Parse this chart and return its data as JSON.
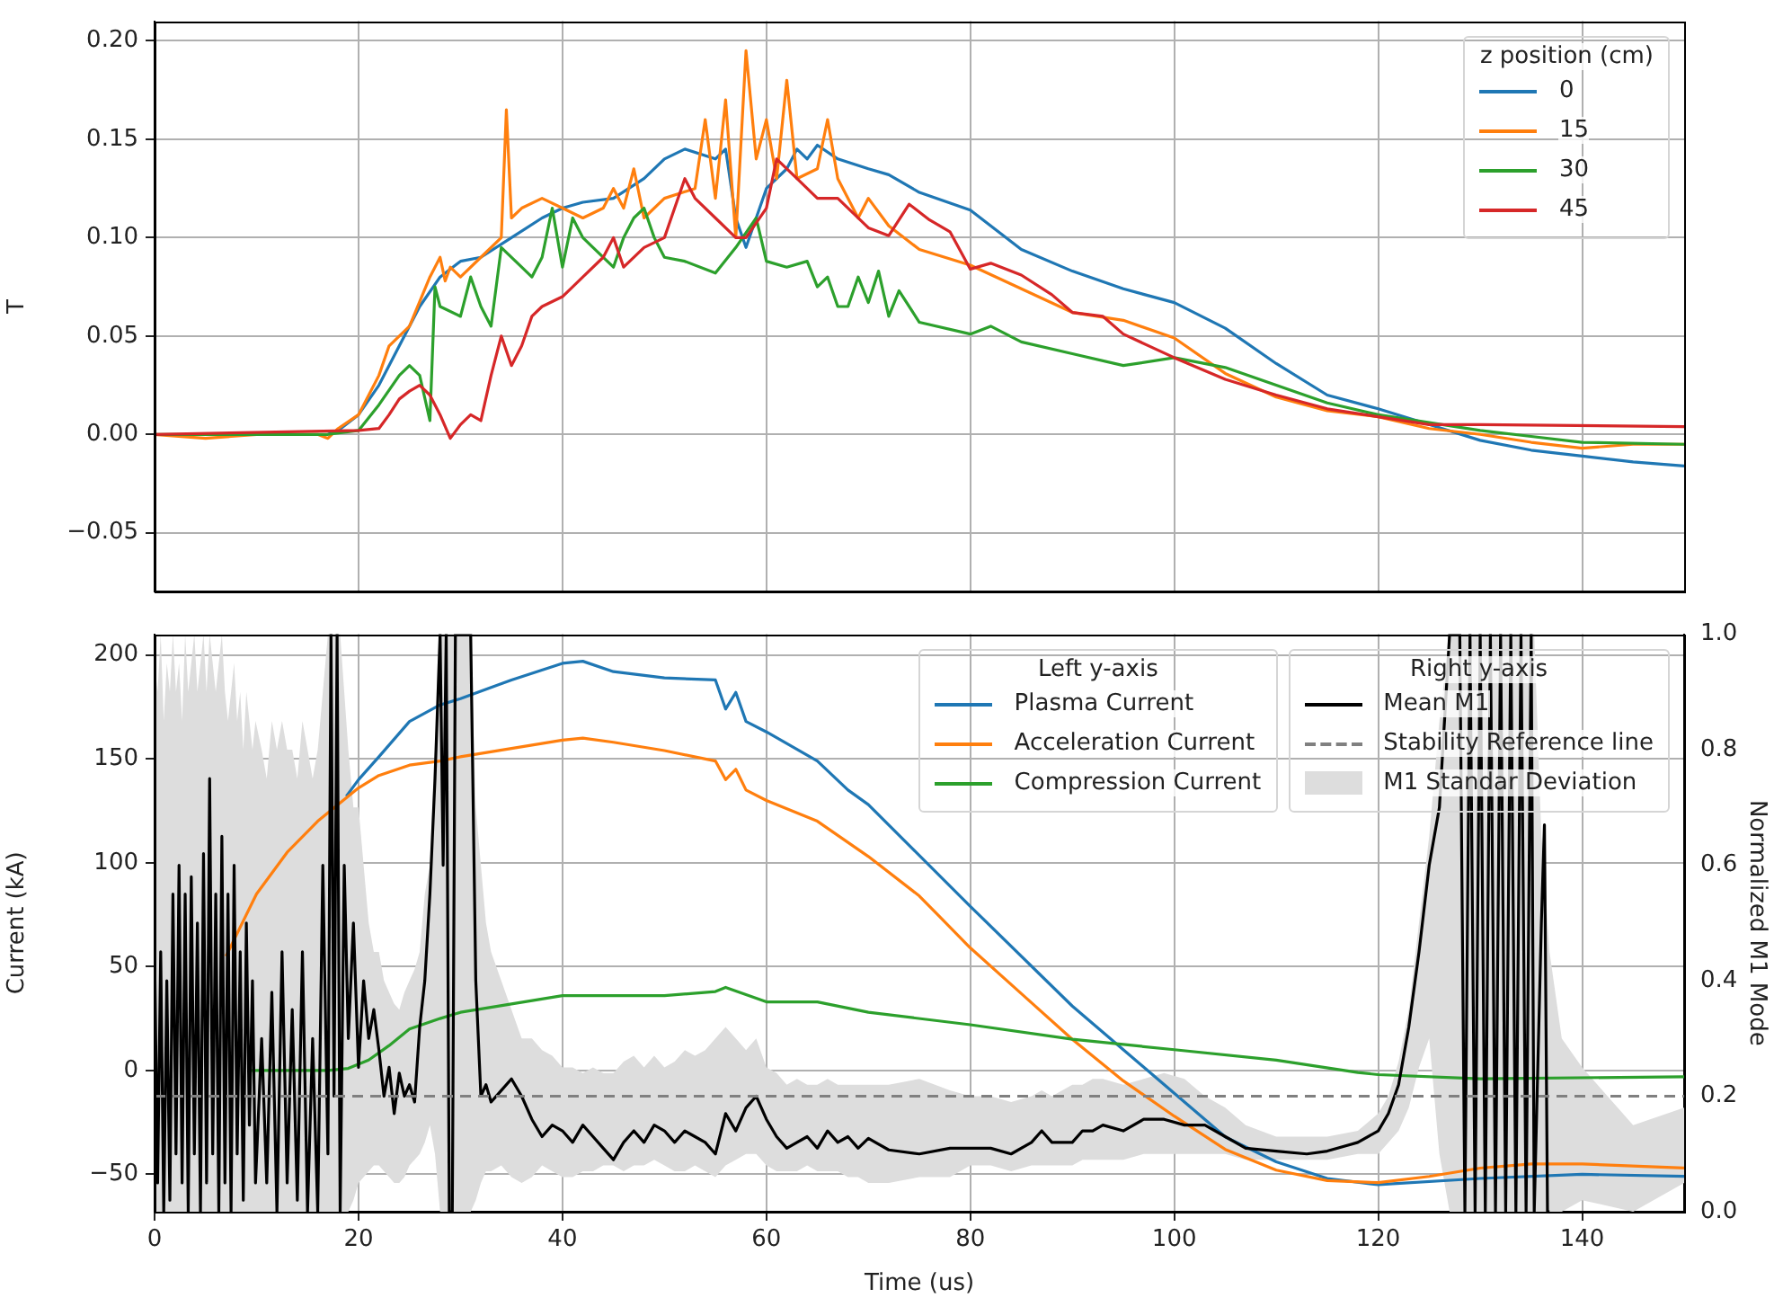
{
  "chart_data": [
    {
      "type": "line",
      "ylabel": "T",
      "legend_title": "z position (cm)",
      "legend": "top right",
      "grid": true,
      "tick_labels": "y",
      "xlim": [
        0,
        150
      ],
      "xticks": [
        0,
        20,
        40,
        60,
        80,
        100,
        120,
        140
      ],
      "ylim": [
        -0.08,
        0.21
      ],
      "yticks": [
        {
          "value": -0.05,
          "label": "−0.05"
        },
        {
          "value": 0,
          "label": "0.00"
        },
        {
          "value": 0.05,
          "label": "0.05"
        },
        {
          "value": 0.1,
          "label": "0.10"
        },
        {
          "value": 0.15,
          "label": "0.15"
        },
        {
          "value": 0.2,
          "label": "0.20"
        }
      ],
      "series": [
        {
          "name": "0",
          "color": "#1f77b4",
          "x": [
            17,
            18,
            20,
            22,
            24,
            26,
            28,
            30,
            32,
            35,
            38,
            40,
            42,
            45,
            48,
            50,
            52,
            55,
            56,
            57,
            58,
            60,
            62,
            63,
            64,
            65,
            67,
            70,
            72,
            75,
            80,
            85,
            90,
            95,
            100,
            105,
            110,
            115,
            120,
            125,
            130,
            135,
            140,
            145,
            150
          ],
          "values": [
            0,
            0.002,
            0.01,
            0.025,
            0.045,
            0.065,
            0.08,
            0.088,
            0.09,
            0.1,
            0.11,
            0.115,
            0.118,
            0.12,
            0.13,
            0.14,
            0.145,
            0.14,
            0.145,
            0.11,
            0.095,
            0.125,
            0.135,
            0.145,
            0.14,
            0.147,
            0.14,
            0.135,
            0.132,
            0.123,
            0.114,
            0.094,
            0.083,
            0.074,
            0.067,
            0.054,
            0.036,
            0.02,
            0.013,
            0.005,
            -0.003,
            -0.008,
            -0.011,
            -0.014,
            -0.016
          ]
        },
        {
          "name": "15",
          "color": "#ff7f0e",
          "x": [
            0,
            5,
            10,
            16,
            17,
            18,
            20,
            22,
            23,
            25,
            27,
            28,
            28.5,
            29,
            30,
            32,
            34,
            34.5,
            35,
            36,
            38,
            40,
            42,
            44,
            45,
            46,
            47,
            48,
            50,
            53,
            54,
            55,
            56,
            57,
            58,
            59,
            60,
            61,
            62,
            63,
            65,
            66,
            67,
            69,
            70,
            72,
            75,
            80,
            85,
            90,
            95,
            100,
            105,
            110,
            115,
            120,
            125,
            130,
            135,
            140,
            145,
            150
          ],
          "values": [
            0,
            -0.002,
            0,
            0,
            -0.002,
            0.003,
            0.01,
            0.03,
            0.045,
            0.055,
            0.08,
            0.09,
            0.078,
            0.085,
            0.08,
            0.09,
            0.1,
            0.165,
            0.11,
            0.115,
            0.12,
            0.115,
            0.11,
            0.115,
            0.125,
            0.115,
            0.135,
            0.11,
            0.12,
            0.125,
            0.16,
            0.12,
            0.17,
            0.1,
            0.195,
            0.14,
            0.16,
            0.13,
            0.18,
            0.13,
            0.135,
            0.16,
            0.13,
            0.11,
            0.12,
            0.106,
            0.094,
            0.086,
            0.074,
            0.062,
            0.058,
            0.049,
            0.031,
            0.019,
            0.012,
            0.009,
            0.003,
            0,
            -0.004,
            -0.007,
            -0.005,
            -0.005
          ]
        },
        {
          "name": "30",
          "color": "#2ca02c",
          "x": [
            0,
            17,
            20,
            22,
            24,
            25,
            26,
            27,
            27.5,
            28,
            30,
            31,
            32,
            33,
            34,
            36,
            37,
            38,
            39,
            40,
            41,
            42,
            43,
            45,
            46,
            47,
            48,
            49,
            50,
            52,
            55,
            57,
            59,
            60,
            62,
            64,
            65,
            66,
            67,
            68,
            69,
            70,
            71,
            72,
            73,
            75,
            80,
            82,
            85,
            90,
            95,
            100,
            105,
            110,
            115,
            120,
            125,
            130,
            135,
            140,
            150
          ],
          "values": [
            0,
            0,
            0.002,
            0.015,
            0.03,
            0.035,
            0.03,
            0.007,
            0.075,
            0.065,
            0.06,
            0.08,
            0.065,
            0.055,
            0.095,
            0.085,
            0.08,
            0.09,
            0.115,
            0.085,
            0.11,
            0.1,
            0.095,
            0.085,
            0.1,
            0.11,
            0.115,
            0.1,
            0.09,
            0.088,
            0.082,
            0.095,
            0.11,
            0.088,
            0.085,
            0.088,
            0.075,
            0.08,
            0.065,
            0.065,
            0.08,
            0.067,
            0.083,
            0.06,
            0.073,
            0.057,
            0.051,
            0.055,
            0.047,
            0.041,
            0.035,
            0.039,
            0.034,
            0.025,
            0.016,
            0.01,
            0.006,
            0.002,
            -0.001,
            -0.004,
            -0.005
          ]
        },
        {
          "name": "45",
          "color": "#d62728",
          "x": [
            0,
            20,
            22,
            23,
            24,
            25,
            26,
            27,
            28,
            29,
            30,
            31,
            32,
            33,
            34,
            35,
            36,
            37,
            38,
            40,
            42,
            44,
            45,
            46,
            48,
            50,
            52,
            53,
            55,
            57,
            58,
            60,
            61,
            63,
            65,
            67,
            70,
            72,
            74,
            76,
            78,
            80,
            82,
            85,
            88,
            90,
            93,
            95,
            100,
            105,
            110,
            115,
            120,
            125,
            130,
            150
          ],
          "values": [
            0,
            0.002,
            0.003,
            0.01,
            0.018,
            0.022,
            0.025,
            0.02,
            0.01,
            -0.002,
            0.005,
            0.01,
            0.007,
            0.03,
            0.05,
            0.035,
            0.045,
            0.06,
            0.065,
            0.07,
            0.08,
            0.09,
            0.1,
            0.085,
            0.095,
            0.1,
            0.13,
            0.12,
            0.11,
            0.1,
            0.1,
            0.115,
            0.14,
            0.13,
            0.12,
            0.12,
            0.105,
            0.101,
            0.117,
            0.109,
            0.103,
            0.084,
            0.087,
            0.081,
            0.071,
            0.062,
            0.06,
            0.051,
            0.039,
            0.028,
            0.02,
            0.013,
            0.009,
            0.005,
            0.005,
            0.004
          ]
        }
      ]
    },
    {
      "type": "line",
      "xlabel": "Time (us)",
      "ylabel": "Current (kA)",
      "y2label": "Normalized M1 Mode",
      "legend_title": "Left y-axis",
      "annotations": [
        "Right y-axis",
        "M1 Standar Deviation"
      ],
      "legend": "top right",
      "grid": true,
      "xlim": [
        0,
        150
      ],
      "xticks": [
        0,
        20,
        40,
        60,
        80,
        100,
        120,
        140
      ],
      "ylim": [
        -68,
        210
      ],
      "yticks": [
        {
          "value": -50,
          "label": "−50"
        },
        0,
        50,
        100,
        150,
        200
      ],
      "y2lim": [
        0,
        1
      ],
      "y2ticks": [
        {
          "value": 0,
          "label": "0.0"
        },
        {
          "value": 0.2,
          "label": "0.2"
        },
        {
          "value": 0.4,
          "label": "0.4"
        },
        {
          "value": 0.6,
          "label": "0.6"
        },
        {
          "value": 0.8,
          "label": "0.8"
        },
        {
          "value": 1,
          "label": "1.0"
        }
      ],
      "ref_lines": [
        {
          "axis": "y2",
          "value": 0.2,
          "label": "Stability Reference line",
          "color": "#808080",
          "line_style": "dashed"
        }
      ],
      "series": [
        {
          "name": "Plasma Current",
          "color": "#1f77b4",
          "x": [
            18.8,
            20,
            22,
            25,
            28,
            30,
            35,
            40,
            42,
            45,
            50,
            55,
            56,
            57,
            58,
            60,
            65,
            68,
            70,
            80,
            90,
            100,
            105,
            110,
            115,
            120,
            130,
            140,
            150
          ],
          "values": [
            132,
            140,
            151,
            168,
            176,
            179,
            188,
            196,
            197,
            192,
            189,
            188,
            174,
            182,
            168,
            163,
            149,
            135,
            128,
            79,
            31,
            -11,
            -32,
            -44,
            -52,
            -55,
            -52,
            -50,
            -51
          ]
        },
        {
          "name": "Acceleration Current",
          "color": "#ff7f0e",
          "x": [
            7,
            10,
            13,
            16,
            18,
            20,
            22,
            25,
            28,
            30,
            35,
            40,
            42,
            45,
            50,
            55,
            56,
            57,
            58,
            60,
            65,
            70,
            75,
            80,
            85,
            90,
            95,
            100,
            105,
            110,
            115,
            120,
            125,
            130,
            135,
            140,
            150
          ],
          "values": [
            55,
            85,
            105,
            120,
            128,
            136,
            142,
            147,
            149,
            151,
            155,
            159,
            160,
            158,
            154,
            149,
            140,
            145,
            135,
            130,
            120,
            103,
            84,
            59,
            37,
            15,
            -5,
            -22,
            -38,
            -48,
            -53,
            -54,
            -51,
            -47,
            -45,
            -45,
            -47
          ]
        },
        {
          "name": "Compression Current",
          "color": "#2ca02c",
          "x": [
            9.4,
            17,
            19,
            21,
            23,
            25,
            28,
            30,
            35,
            40,
            45,
            50,
            55,
            56,
            60,
            65,
            70,
            80,
            90,
            100,
            110,
            118,
            120,
            130,
            150
          ],
          "values": [
            0,
            0,
            1,
            5,
            12,
            20,
            25,
            28,
            32,
            36,
            36,
            36,
            38,
            40,
            33,
            33,
            28,
            22,
            15,
            10,
            5,
            -1,
            -2,
            -4,
            -3
          ]
        },
        {
          "name": "Mean M1",
          "color": "#000000",
          "axis": "y2",
          "x": [
            0,
            0.3,
            0.6,
            0.9,
            1.2,
            1.5,
            1.8,
            2.1,
            2.4,
            2.7,
            3,
            3.3,
            3.6,
            3.9,
            4.2,
            4.5,
            4.8,
            5.1,
            5.4,
            5.7,
            6,
            6.3,
            6.6,
            6.9,
            7.2,
            7.5,
            7.8,
            8.1,
            8.4,
            8.7,
            9,
            9.3,
            9.6,
            9.9,
            10.5,
            11,
            11.5,
            12,
            12.5,
            13,
            13.5,
            14,
            14.5,
            15,
            15.5,
            16,
            16.5,
            17,
            17.3,
            17.6,
            17.9,
            18.2,
            18.6,
            19,
            19.5,
            20,
            20.5,
            21,
            21.5,
            22,
            22.5,
            23,
            23.5,
            24,
            24.5,
            25,
            25.5,
            26,
            26.5,
            27,
            27.5,
            28,
            28.3,
            28.6,
            28.9,
            29.2,
            29.5,
            30,
            30.5,
            31,
            31.5,
            32,
            32.5,
            33,
            34,
            35,
            36,
            37,
            38,
            39,
            40,
            41,
            42,
            43,
            44,
            45,
            46,
            47,
            48,
            49,
            50,
            51,
            52,
            53,
            54,
            55,
            56,
            57,
            58,
            59,
            60,
            61,
            62,
            63,
            64,
            65,
            66,
            67,
            68,
            69,
            70,
            72,
            75,
            78,
            80,
            82,
            84,
            86,
            87,
            88,
            90,
            91,
            92,
            93,
            95,
            97,
            99,
            101,
            103,
            105,
            107,
            110,
            113,
            115,
            118,
            120,
            121,
            122,
            123,
            124,
            125,
            126,
            127,
            128,
            128.5,
            129,
            129.5,
            130,
            130.5,
            131,
            131.5,
            132,
            132.5,
            133,
            133.5,
            134,
            134.5,
            135,
            135.3,
            136,
            136.3,
            136.6,
            136.8,
            138,
            140,
            145,
            150
          ],
          "values": [
            0.45,
            0.05,
            0.45,
            0,
            0.4,
            0.02,
            0.55,
            0.1,
            0.6,
            0.05,
            0.55,
            0,
            0.58,
            0.1,
            0.5,
            0,
            0.62,
            0.05,
            0.75,
            0.1,
            0.55,
            0,
            0.65,
            0.05,
            0.55,
            0,
            0.6,
            0.1,
            0.45,
            0.02,
            0.5,
            0.15,
            0.4,
            0.05,
            0.3,
            0.05,
            0.38,
            0,
            0.45,
            0.05,
            0.35,
            0.02,
            0.45,
            0,
            0.3,
            0,
            0.6,
            0.1,
            1,
            0.2,
            1,
            0,
            0.6,
            0.3,
            0.5,
            0.25,
            0.4,
            0.3,
            0.35,
            0.28,
            0.2,
            0.25,
            0.17,
            0.24,
            0.2,
            0.22,
            0.19,
            0.32,
            0.4,
            0.55,
            0.75,
            1,
            0.6,
            1,
            0,
            0,
            1,
            1,
            1,
            1,
            0.4,
            0.2,
            0.22,
            0.19,
            0.21,
            0.23,
            0.2,
            0.16,
            0.13,
            0.15,
            0.14,
            0.12,
            0.15,
            0.13,
            0.11,
            0.09,
            0.12,
            0.14,
            0.12,
            0.15,
            0.14,
            0.12,
            0.14,
            0.13,
            0.12,
            0.1,
            0.17,
            0.14,
            0.18,
            0.2,
            0.16,
            0.13,
            0.11,
            0.12,
            0.13,
            0.11,
            0.14,
            0.12,
            0.13,
            0.11,
            0.127,
            0.107,
            0.1,
            0.11,
            0.11,
            0.11,
            0.1,
            0.12,
            0.14,
            0.12,
            0.12,
            0.14,
            0.14,
            0.15,
            0.14,
            0.16,
            0.16,
            0.15,
            0.15,
            0.13,
            0.11,
            0.105,
            0.1,
            0.105,
            0.12,
            0.14,
            0.17,
            0.22,
            0.32,
            0.45,
            0.6,
            0.7,
            1,
            1,
            0,
            1,
            0,
            1,
            0,
            1,
            0,
            1,
            0,
            1,
            0,
            1,
            0,
            1,
            0,
            0.5,
            0.67,
            0,
            0,
            null,
            null,
            null,
            null
          ],
          "lower": [
            0,
            0,
            0,
            0,
            0,
            0,
            0,
            0,
            0,
            0,
            0,
            0,
            0,
            0,
            0,
            0,
            0,
            0,
            0,
            0,
            0,
            0,
            0,
            0,
            0,
            0,
            0,
            0,
            0,
            0,
            0,
            0,
            0,
            0,
            0,
            0,
            0,
            0,
            0,
            0,
            0,
            0,
            0,
            0,
            0,
            0,
            0,
            0,
            0,
            0,
            0,
            0,
            0,
            0,
            0.02,
            0.05,
            0.06,
            0.07,
            0.08,
            0.08,
            0.07,
            0.06,
            0.05,
            0.05,
            0.06,
            0.08,
            0.09,
            0.1,
            0.12,
            0.15,
            0.1,
            0,
            0,
            0,
            0,
            0,
            0,
            0,
            0,
            0,
            0.02,
            0.05,
            0.07,
            0.07,
            0.08,
            0.06,
            0.05,
            0.06,
            0.08,
            0.07,
            0.06,
            0.06,
            0.07,
            0.07,
            0.08,
            0.08,
            0.07,
            0.08,
            0.08,
            0.09,
            0.08,
            0.07,
            0.07,
            0.08,
            0.07,
            0.06,
            0.08,
            0.09,
            0.1,
            0.1,
            0.08,
            0.07,
            0.07,
            0.07,
            0.08,
            0.07,
            0.07,
            0.07,
            0.06,
            0.06,
            0.05,
            0.05,
            0.06,
            0.06,
            0.08,
            0.08,
            0.07,
            0.08,
            0.08,
            0.08,
            0.08,
            0.09,
            0.09,
            0.09,
            0.09,
            0.1,
            0.1,
            0.1,
            0.1,
            0.1,
            0.09,
            0.09,
            0.09,
            0.09,
            0.1,
            0.1,
            0.12,
            0.14,
            0.18,
            0.25,
            0.3,
            0.1,
            0,
            0,
            0,
            0,
            0,
            0,
            0,
            0,
            0,
            0,
            0,
            0,
            0,
            0,
            0,
            0,
            0,
            0,
            0,
            0,
            0,
            0,
            0.02,
            0,
            0.05
          ],
          "upper": [
            0.95,
            0.9,
            1,
            0.85,
            0.95,
            0.9,
            1,
            0.9,
            0.95,
            0.85,
            1,
            0.9,
            0.95,
            1,
            0.9,
            0.95,
            1,
            0.9,
            1,
            0.95,
            0.9,
            0.95,
            1,
            0.9,
            0.85,
            0.9,
            0.95,
            0.85,
            0.9,
            0.8,
            0.9,
            0.85,
            0.8,
            0.85,
            0.8,
            0.75,
            0.85,
            0.8,
            0.85,
            0.8,
            0.8,
            0.75,
            0.85,
            0.8,
            0.75,
            0.8,
            0.9,
            1,
            1,
            1,
            1,
            1,
            0.9,
            0.8,
            0.7,
            0.7,
            0.6,
            0.5,
            0.45,
            0.45,
            0.4,
            0.38,
            0.36,
            0.35,
            0.38,
            0.4,
            0.42,
            0.45,
            0.55,
            0.6,
            0.8,
            1,
            1,
            1,
            1,
            1,
            1,
            1,
            1,
            1,
            0.7,
            0.6,
            0.5,
            0.45,
            0.4,
            0.35,
            0.3,
            0.3,
            0.28,
            0.27,
            0.25,
            0.25,
            0.24,
            0.25,
            0.24,
            0.24,
            0.26,
            0.27,
            0.25,
            0.27,
            0.25,
            0.26,
            0.28,
            0.27,
            0.28,
            0.3,
            0.32,
            0.3,
            0.28,
            0.3,
            0.25,
            0.24,
            0.22,
            0.23,
            0.22,
            0.22,
            0.23,
            0.22,
            0.22,
            0.22,
            0.22,
            0.22,
            0.23,
            0.21,
            0.2,
            0.2,
            0.19,
            0.2,
            0.21,
            0.2,
            0.22,
            0.22,
            0.23,
            0.23,
            0.22,
            0.23,
            0.24,
            0.23,
            0.2,
            0.18,
            0.15,
            0.13,
            0.13,
            0.13,
            0.14,
            0.17,
            0.2,
            0.26,
            0.35,
            0.5,
            0.65,
            0.85,
            1,
            1,
            1,
            1,
            1,
            1,
            1,
            1,
            1,
            1,
            1,
            1,
            1,
            1,
            1,
            1,
            1,
            0.65,
            0.6,
            0.5,
            0.45,
            0.3,
            0.25,
            0.15,
            0.18
          ]
        }
      ]
    }
  ]
}
